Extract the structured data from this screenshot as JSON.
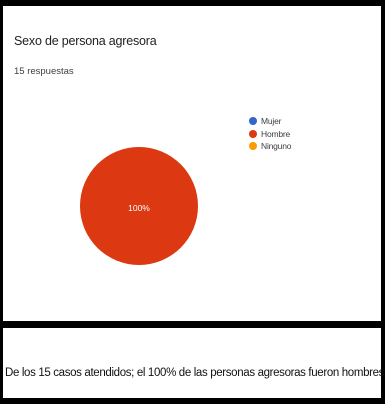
{
  "chart_data": {
    "type": "pie",
    "title": "Sexo de persona agresora",
    "subtitle": "15 respuestas",
    "categories": [
      "Mujer",
      "Hombre",
      "Ninguno"
    ],
    "values": [
      0,
      15,
      0
    ],
    "percent": [
      0,
      100,
      0
    ],
    "slice_label": "100%",
    "colors": [
      "#3366cc",
      "#dc3912",
      "#ff9900"
    ],
    "legend_position": "right"
  },
  "caption": "De los 15 casos atendidos; el 100% de las personas agresoras fueron hombres."
}
